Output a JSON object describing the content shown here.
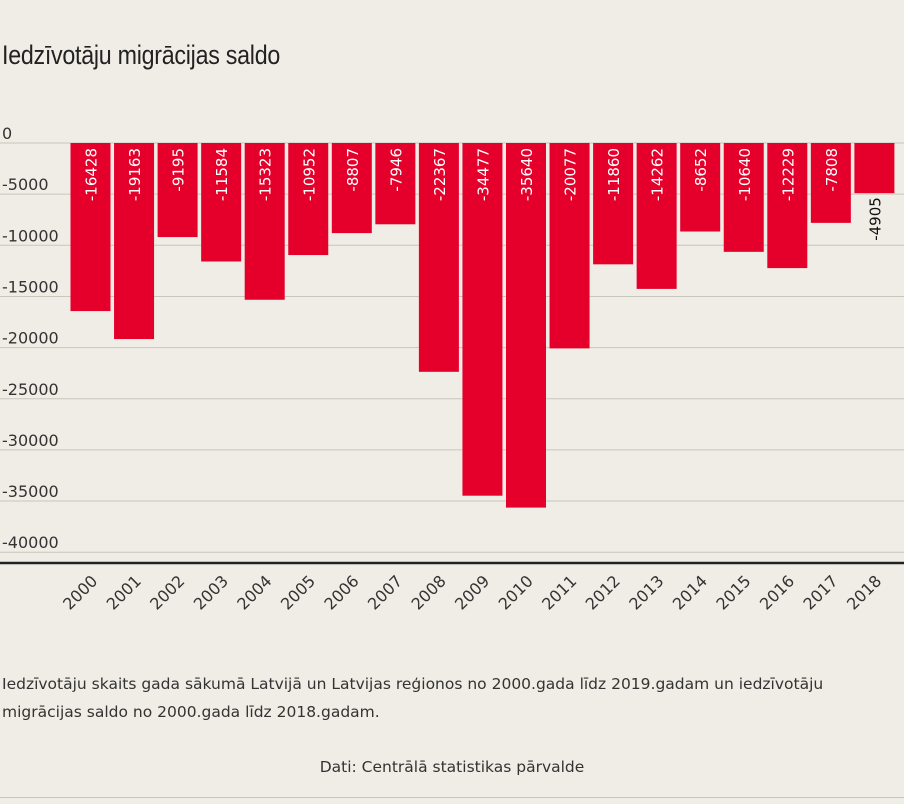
{
  "title": "Iedzīvotāju migrācijas saldo",
  "caption": "Iedzīvotāju skaits gada sākumā Latvijā un Latvijas reģionos no 2000.gada līdz 2019.gadam un iedzīvotāju migrācijas saldo no 2000.gada līdz 2018.gadam.",
  "source": "Dati: Centrālā statistikas pārvalde",
  "colors": {
    "bar": "#e4002b",
    "background": "#efede5",
    "grid": "#c9c6bb",
    "axis": "#222222"
  },
  "chart_data": {
    "type": "bar",
    "categories": [
      "2000",
      "2001",
      "2002",
      "2003",
      "2004",
      "2005",
      "2006",
      "2007",
      "2008",
      "2009",
      "2010",
      "2011",
      "2012",
      "2013",
      "2014",
      "2015",
      "2016",
      "2017",
      "2018"
    ],
    "values": [
      -16428,
      -19163,
      -9195,
      -11584,
      -15323,
      -10952,
      -8807,
      -7946,
      -22367,
      -34477,
      -35640,
      -20077,
      -11860,
      -14262,
      -8652,
      -10640,
      -12229,
      -7808,
      -4905
    ],
    "ylim": [
      -41500,
      0
    ],
    "yticks": [
      0,
      -5000,
      -10000,
      -15000,
      -20000,
      -25000,
      -30000,
      -35000,
      -40000
    ],
    "grid": true,
    "data_labels": "inside-rotated"
  }
}
